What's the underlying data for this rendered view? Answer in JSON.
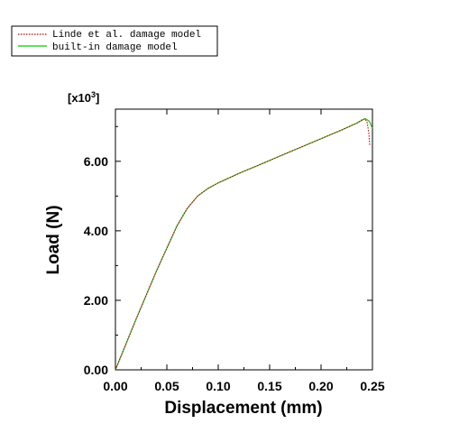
{
  "chart_data": {
    "type": "line",
    "title": "",
    "xlabel": "Displacement (mm)",
    "ylabel": "Load (N)",
    "y_multiplier": "[x10",
    "y_multiplier_exp": "3",
    "y_multiplier_close": "]",
    "xlim": [
      0.0,
      0.25
    ],
    "ylim": [
      0.0,
      7.5
    ],
    "x_ticks": [
      0.0,
      0.05,
      0.1,
      0.15,
      0.2,
      0.25
    ],
    "x_tick_labels": [
      "0.00",
      "0.05",
      "0.10",
      "0.15",
      "0.20",
      "0.25"
    ],
    "y_ticks": [
      0.0,
      2.0,
      4.0,
      6.0
    ],
    "y_tick_labels": [
      "0.00",
      "2.00",
      "4.00",
      "6.00"
    ],
    "grid": false,
    "legend_position": "top-left",
    "series": [
      {
        "name": "Linde et al. damage model",
        "color": "#cc0000",
        "style": "dotted",
        "x": [
          0.0,
          0.02,
          0.04,
          0.06,
          0.07,
          0.08,
          0.09,
          0.1,
          0.12,
          0.14,
          0.16,
          0.18,
          0.2,
          0.22,
          0.235,
          0.24,
          0.243,
          0.245,
          0.2465,
          0.2475
        ],
        "y": [
          0.0,
          1.45,
          2.85,
          4.15,
          4.65,
          5.0,
          5.22,
          5.38,
          5.65,
          5.9,
          6.15,
          6.4,
          6.65,
          6.9,
          7.1,
          7.2,
          7.22,
          7.1,
          6.8,
          6.45
        ]
      },
      {
        "name": "built-in damage model",
        "color": "#00cc00",
        "style": "solid",
        "x": [
          0.0,
          0.02,
          0.04,
          0.06,
          0.07,
          0.08,
          0.09,
          0.1,
          0.12,
          0.14,
          0.16,
          0.18,
          0.2,
          0.22,
          0.235,
          0.243,
          0.247,
          0.25
        ],
        "y": [
          0.0,
          1.45,
          2.85,
          4.15,
          4.65,
          5.0,
          5.22,
          5.38,
          5.65,
          5.9,
          6.15,
          6.4,
          6.65,
          6.9,
          7.1,
          7.23,
          7.15,
          6.95
        ]
      }
    ]
  }
}
